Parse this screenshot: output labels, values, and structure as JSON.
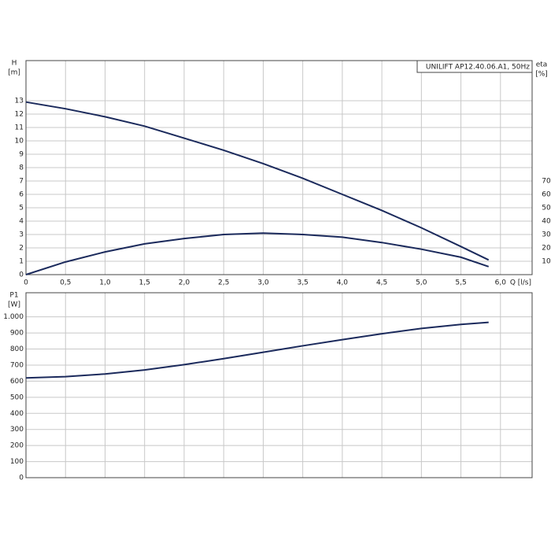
{
  "chart_data": [
    {
      "type": "line",
      "title": "UNILIFT AP12.40.06.A1, 50Hz",
      "ylabel": "H",
      "yunit": "[m]",
      "y2label": "eta",
      "y2unit": "[%]",
      "xlabel": "Q [l/s]",
      "x": [
        0,
        0.5,
        1.0,
        1.5,
        2.0,
        2.5,
        3.0,
        3.5,
        4.0,
        4.5,
        5.0,
        5.5,
        5.85
      ],
      "series": [
        {
          "color": "#1b2a5c",
          "values": [
            12.9,
            12.4,
            11.8,
            11.1,
            10.2,
            9.3,
            8.3,
            7.2,
            6.0,
            4.8,
            3.5,
            2.1,
            1.1
          ]
        },
        {
          "color": "#1b2a5c",
          "axis": "y2",
          "values": [
            0,
            9.5,
            17,
            23,
            27,
            30,
            31,
            30,
            28,
            24,
            19,
            13,
            6
          ]
        }
      ],
      "xlim": [
        0,
        6.4
      ],
      "xticks": [
        0,
        {
          "value": 0.5,
          "label": "0,5"
        },
        {
          "value": 1.0,
          "label": "1,0"
        },
        {
          "value": 1.5,
          "label": "1,5"
        },
        {
          "value": 2.0,
          "label": "2,0"
        },
        {
          "value": 2.5,
          "label": "2,5"
        },
        {
          "value": 3.0,
          "label": "3,0"
        },
        {
          "value": 3.5,
          "label": "3,5"
        },
        {
          "value": 4.0,
          "label": "4,0"
        },
        {
          "value": 4.5,
          "label": "4,5"
        },
        {
          "value": 5.0,
          "label": "5,0"
        },
        {
          "value": 5.5,
          "label": "5,5"
        },
        {
          "value": 6.0,
          "label": "6,0"
        }
      ],
      "ylim": [
        0,
        16
      ],
      "yticks": [
        0,
        1,
        2,
        3,
        4,
        5,
        6,
        7,
        8,
        9,
        10,
        11,
        12,
        13
      ],
      "y2lim": [
        0,
        160
      ],
      "y2ticks": [
        10,
        20,
        30,
        40,
        50,
        60,
        70
      ],
      "grid": true
    },
    {
      "type": "line",
      "ylabel": "P1",
      "yunit": "[W]",
      "x": [
        0,
        0.5,
        1.0,
        1.5,
        2.0,
        2.5,
        3.0,
        3.5,
        4.0,
        4.5,
        5.0,
        5.5,
        5.85
      ],
      "series": [
        {
          "color": "#1b2a5c",
          "values": [
            620,
            628,
            645,
            670,
            703,
            740,
            780,
            820,
            858,
            895,
            928,
            953,
            966
          ]
        }
      ],
      "xlim": [
        0,
        6.4
      ],
      "ylim": [
        0,
        1150
      ],
      "yticks": [
        0,
        100,
        200,
        300,
        400,
        500,
        600,
        700,
        800,
        900,
        {
          "value": 1000,
          "label": "1.000"
        }
      ],
      "grid": true
    }
  ]
}
